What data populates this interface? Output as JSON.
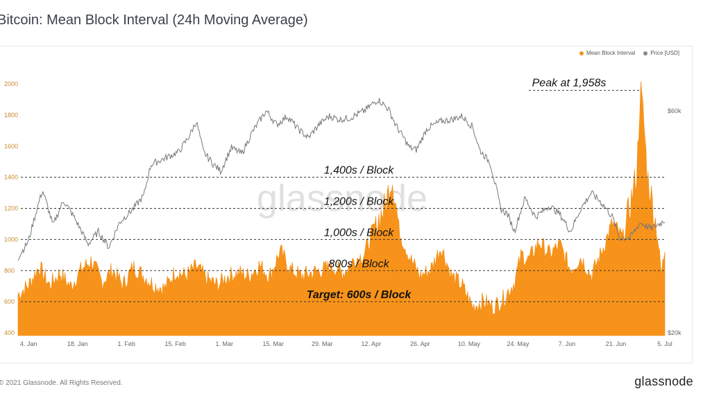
{
  "title": "Bitcoin: Mean Block Interval (24h Moving Average)",
  "footer": {
    "copyright": "© 2021 Glassnode. All Rights Reserved.",
    "logo": "glassnode"
  },
  "watermark": "glassnode",
  "legend": [
    {
      "label": "Mean Block Interval",
      "color": "#f7931a"
    },
    {
      "label": "Price [USD]",
      "color": "#888888"
    }
  ],
  "chart_data": {
    "type": "area",
    "x_ticks": [
      "4. Jan",
      "18. Jan",
      "1. Feb",
      "15. Feb",
      "1. Mar",
      "15. Mar",
      "29. Mar",
      "12. Apr",
      "26. Apr",
      "10. May",
      "24. May",
      "7. Jun",
      "21. Jun",
      "5. Jul"
    ],
    "left_axis": {
      "ticks": [
        "400",
        "600",
        "800",
        "1000",
        "1200",
        "1400",
        "1600",
        "1800",
        "2000"
      ],
      "range": [
        400,
        2050
      ]
    },
    "right_axis": {
      "ticks": [
        "$20k",
        "$60k"
      ],
      "scale": "log"
    },
    "reference_lines": [
      {
        "value": 1400,
        "label": "1,400s / Block",
        "bold": false
      },
      {
        "value": 1200,
        "label": "1,200s / Block",
        "bold": false
      },
      {
        "value": 1000,
        "label": "1,000s / Block",
        "bold": false
      },
      {
        "value": 800,
        "label": "800s / Block",
        "bold": false
      },
      {
        "value": 600,
        "label": "Target: 600s / Block",
        "bold": true
      }
    ],
    "peak_annotation": {
      "label": "Peak at 1,958s",
      "value": 1958,
      "date": "2021-06-28"
    },
    "series": [
      {
        "name": "Mean Block Interval",
        "color": "#f7931a",
        "style": "area",
        "points": [
          [
            "2021-01-01",
            640
          ],
          [
            "2021-01-04",
            700
          ],
          [
            "2021-01-07",
            820
          ],
          [
            "2021-01-10",
            700
          ],
          [
            "2021-01-13",
            780
          ],
          [
            "2021-01-16",
            690
          ],
          [
            "2021-01-19",
            800
          ],
          [
            "2021-01-22",
            860
          ],
          [
            "2021-01-25",
            720
          ],
          [
            "2021-01-28",
            800
          ],
          [
            "2021-01-31",
            700
          ],
          [
            "2021-02-03",
            820
          ],
          [
            "2021-02-06",
            760
          ],
          [
            "2021-02-09",
            700
          ],
          [
            "2021-02-12",
            680
          ],
          [
            "2021-02-15",
            790
          ],
          [
            "2021-02-18",
            760
          ],
          [
            "2021-02-21",
            820
          ],
          [
            "2021-02-24",
            740
          ],
          [
            "2021-02-27",
            700
          ],
          [
            "2021-03-02",
            760
          ],
          [
            "2021-03-05",
            780
          ],
          [
            "2021-03-08",
            760
          ],
          [
            "2021-03-11",
            830
          ],
          [
            "2021-03-14",
            760
          ],
          [
            "2021-03-17",
            920
          ],
          [
            "2021-03-20",
            800
          ],
          [
            "2021-03-23",
            760
          ],
          [
            "2021-03-26",
            780
          ],
          [
            "2021-03-29",
            800
          ],
          [
            "2021-04-01",
            820
          ],
          [
            "2021-04-04",
            780
          ],
          [
            "2021-04-07",
            860
          ],
          [
            "2021-04-10",
            900
          ],
          [
            "2021-04-13",
            1080
          ],
          [
            "2021-04-16",
            1200
          ],
          [
            "2021-04-18",
            1400
          ],
          [
            "2021-04-20",
            1050
          ],
          [
            "2021-04-23",
            880
          ],
          [
            "2021-04-26",
            760
          ],
          [
            "2021-04-29",
            800
          ],
          [
            "2021-05-02",
            950
          ],
          [
            "2021-05-05",
            760
          ],
          [
            "2021-05-08",
            700
          ],
          [
            "2021-05-11",
            560
          ],
          [
            "2021-05-14",
            600
          ],
          [
            "2021-05-17",
            560
          ],
          [
            "2021-05-20",
            620
          ],
          [
            "2021-05-23",
            720
          ],
          [
            "2021-05-25",
            900
          ],
          [
            "2021-05-27",
            860
          ],
          [
            "2021-05-30",
            980
          ],
          [
            "2021-06-02",
            900
          ],
          [
            "2021-06-05",
            960
          ],
          [
            "2021-06-08",
            800
          ],
          [
            "2021-06-11",
            880
          ],
          [
            "2021-06-14",
            760
          ],
          [
            "2021-06-17",
            920
          ],
          [
            "2021-06-20",
            1100
          ],
          [
            "2021-06-23",
            1000
          ],
          [
            "2021-06-25",
            1200
          ],
          [
            "2021-06-27",
            1420
          ],
          [
            "2021-06-28",
            1958
          ],
          [
            "2021-06-29",
            1750
          ],
          [
            "2021-06-30",
            1400
          ],
          [
            "2021-07-01",
            1280
          ],
          [
            "2021-07-02",
            1150
          ],
          [
            "2021-07-03",
            1000
          ],
          [
            "2021-07-04",
            760
          ],
          [
            "2021-07-05",
            940
          ]
        ]
      },
      {
        "name": "Price [USD]",
        "color": "#777777",
        "style": "line",
        "points": [
          [
            "2021-01-01",
            29000
          ],
          [
            "2021-01-04",
            31500
          ],
          [
            "2021-01-08",
            40500
          ],
          [
            "2021-01-11",
            34000
          ],
          [
            "2021-01-14",
            38500
          ],
          [
            "2021-01-17",
            35500
          ],
          [
            "2021-01-21",
            31000
          ],
          [
            "2021-01-24",
            33000
          ],
          [
            "2021-01-27",
            30500
          ],
          [
            "2021-01-30",
            34500
          ],
          [
            "2021-02-03",
            37000
          ],
          [
            "2021-02-06",
            39500
          ],
          [
            "2021-02-08",
            46000
          ],
          [
            "2021-02-12",
            47500
          ],
          [
            "2021-02-16",
            49000
          ],
          [
            "2021-02-19",
            53000
          ],
          [
            "2021-02-21",
            57000
          ],
          [
            "2021-02-23",
            49000
          ],
          [
            "2021-02-26",
            46000
          ],
          [
            "2021-02-28",
            44500
          ],
          [
            "2021-03-03",
            50000
          ],
          [
            "2021-03-06",
            48500
          ],
          [
            "2021-03-09",
            54000
          ],
          [
            "2021-03-13",
            60000
          ],
          [
            "2021-03-16",
            56000
          ],
          [
            "2021-03-19",
            58500
          ],
          [
            "2021-03-22",
            55000
          ],
          [
            "2021-03-25",
            52500
          ],
          [
            "2021-03-28",
            56000
          ],
          [
            "2021-03-31",
            58500
          ],
          [
            "2021-04-03",
            57500
          ],
          [
            "2021-04-06",
            58000
          ],
          [
            "2021-04-10",
            60000
          ],
          [
            "2021-04-14",
            63500
          ],
          [
            "2021-04-17",
            60500
          ],
          [
            "2021-04-19",
            56000
          ],
          [
            "2021-04-23",
            50000
          ],
          [
            "2021-04-25",
            49500
          ],
          [
            "2021-04-28",
            55000
          ],
          [
            "2021-05-02",
            57000
          ],
          [
            "2021-05-05",
            57500
          ],
          [
            "2021-05-08",
            58500
          ],
          [
            "2021-05-11",
            55500
          ],
          [
            "2021-05-13",
            49500
          ],
          [
            "2021-05-16",
            46500
          ],
          [
            "2021-05-19",
            37000
          ],
          [
            "2021-05-21",
            36000
          ],
          [
            "2021-05-23",
            33000
          ],
          [
            "2021-05-26",
            39000
          ],
          [
            "2021-05-29",
            35500
          ],
          [
            "2021-06-02",
            37500
          ],
          [
            "2021-06-05",
            36000
          ],
          [
            "2021-06-08",
            33000
          ],
          [
            "2021-06-11",
            37000
          ],
          [
            "2021-06-14",
            40000
          ],
          [
            "2021-06-17",
            38000
          ],
          [
            "2021-06-20",
            35500
          ],
          [
            "2021-06-22",
            32000
          ],
          [
            "2021-06-25",
            32000
          ],
          [
            "2021-06-28",
            34500
          ],
          [
            "2021-07-01",
            33500
          ],
          [
            "2021-07-04",
            34500
          ],
          [
            "2021-07-05",
            35000
          ]
        ]
      }
    ]
  }
}
